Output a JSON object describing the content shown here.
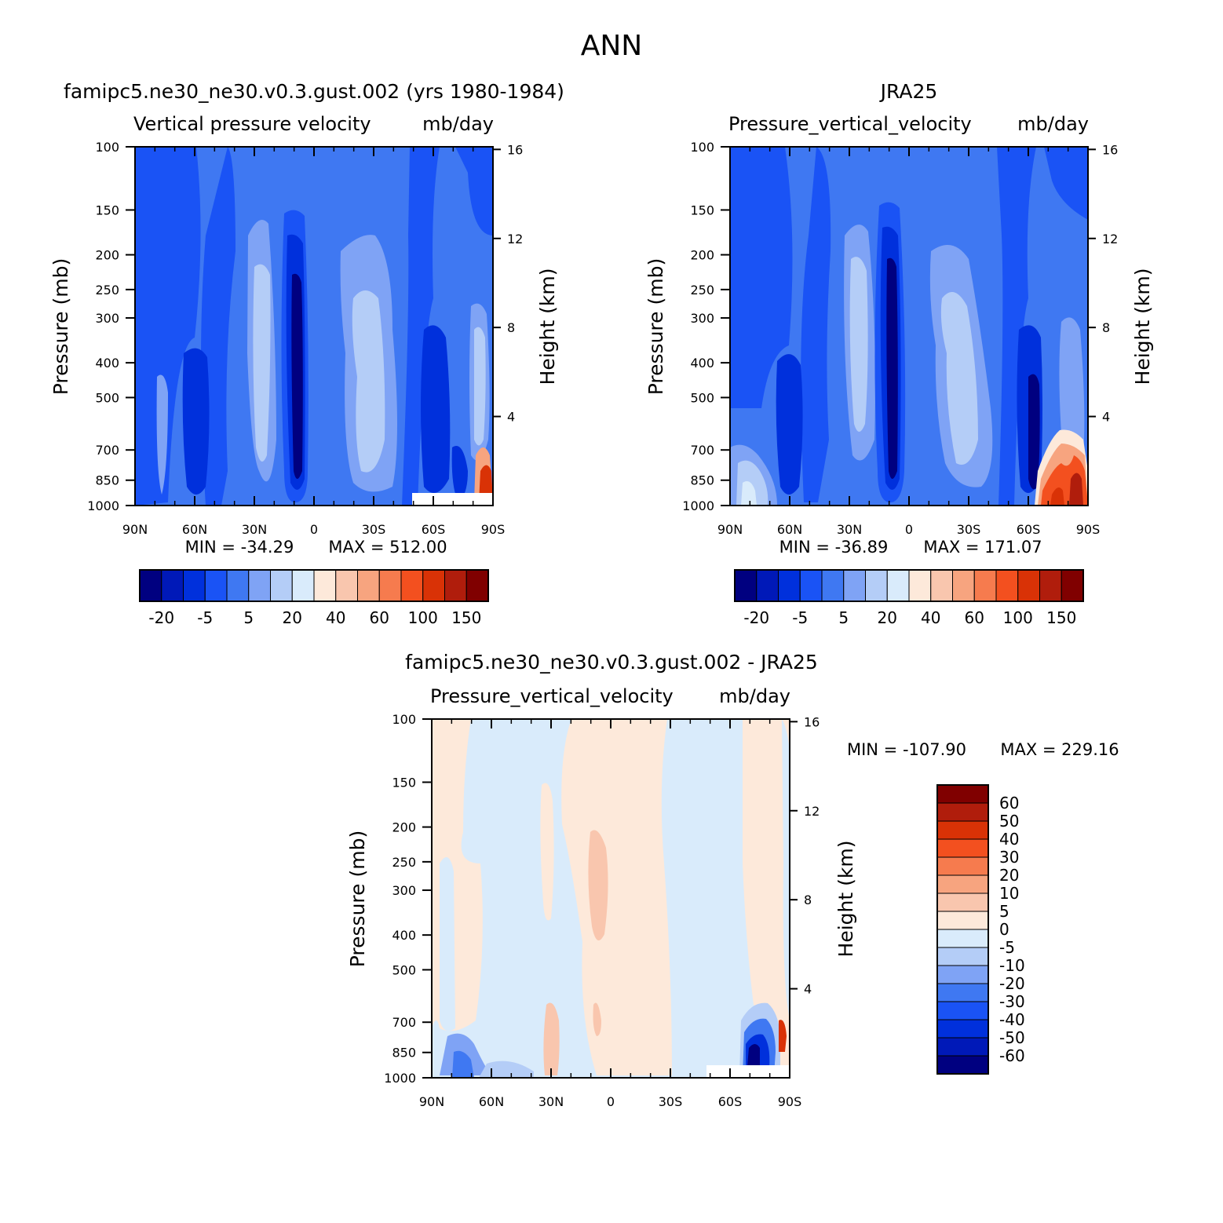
{
  "figure": {
    "title": "ANN"
  },
  "colors": {
    "model_obs_scale": [
      "#000080",
      "#0019b8",
      "#0030dc",
      "#1a53f5",
      "#3f78f2",
      "#7fa3f5",
      "#b4cdf7",
      "#d9ebfb",
      "#fde9da",
      "#f9c6ae",
      "#f7a47f",
      "#f67b4e",
      "#f3501f",
      "#d93206",
      "#b01d0c",
      "#800000"
    ],
    "diff_scale": [
      "#000080",
      "#0019b8",
      "#0030dc",
      "#1a53f5",
      "#3f78f2",
      "#7fa3f5",
      "#b4cdf7",
      "#d9ebfb",
      "#fde9da",
      "#f9c6ae",
      "#f7a47f",
      "#f67b4e",
      "#f3501f",
      "#d93206",
      "#b01d0c",
      "#800000"
    ]
  },
  "chart_data": [
    {
      "type": "heatmap",
      "title": "famipc5.ne30_ne30.v0.3.gust.002 (yrs 1980-1984)",
      "subtitle_left": "Vertical pressure velocity",
      "subtitle_right": "mb/day",
      "ylabel": "Pressure (mb)",
      "ylabel_right": "Height (km)",
      "x_ticks": [
        "90N",
        "60N",
        "30N",
        "0",
        "30S",
        "60S",
        "90S"
      ],
      "y_ticks": [
        "100",
        "150",
        "200",
        "250",
        "300",
        "400",
        "500",
        "700",
        "850",
        "1000"
      ],
      "y_right_ticks": [
        "16",
        "12",
        "8",
        "4"
      ],
      "ylim": [
        1000,
        100
      ],
      "x": [
        90,
        -90
      ],
      "min_text": "MIN = -34.29",
      "max_text": "MAX = 512.00",
      "colorbar_labels": [
        "-20",
        "-5",
        "5",
        "20",
        "40",
        "60",
        "100",
        "150"
      ],
      "colorbar_orientation": "horizontal"
    },
    {
      "type": "heatmap",
      "title": "JRA25",
      "subtitle_left": "Pressure_vertical_velocity",
      "subtitle_right": "mb/day",
      "ylabel": "Pressure (mb)",
      "ylabel_right": "Height (km)",
      "x_ticks": [
        "90N",
        "60N",
        "30N",
        "0",
        "30S",
        "60S",
        "90S"
      ],
      "y_ticks": [
        "100",
        "150",
        "200",
        "250",
        "300",
        "400",
        "500",
        "700",
        "850",
        "1000"
      ],
      "y_right_ticks": [
        "16",
        "12",
        "8",
        "4"
      ],
      "ylim": [
        1000,
        100
      ],
      "x": [
        90,
        -90
      ],
      "min_text": "MIN = -36.89",
      "max_text": "MAX = 171.07",
      "colorbar_labels": [
        "-20",
        "-5",
        "5",
        "20",
        "40",
        "60",
        "100",
        "150"
      ],
      "colorbar_orientation": "horizontal"
    },
    {
      "type": "heatmap",
      "title": "famipc5.ne30_ne30.v0.3.gust.002 - JRA25",
      "subtitle_left": "Pressure_vertical_velocity",
      "subtitle_right": "mb/day",
      "ylabel": "Pressure (mb)",
      "ylabel_right": "Height (km)",
      "x_ticks": [
        "90N",
        "60N",
        "30N",
        "0",
        "30S",
        "60S",
        "90S"
      ],
      "y_ticks": [
        "100",
        "150",
        "200",
        "250",
        "300",
        "400",
        "500",
        "700",
        "850",
        "1000"
      ],
      "y_right_ticks": [
        "16",
        "12",
        "8",
        "4"
      ],
      "ylim": [
        1000,
        100
      ],
      "x": [
        90,
        -90
      ],
      "min_text": "MIN = -107.90",
      "max_text": "MAX = 229.16",
      "colorbar_labels": [
        "60",
        "50",
        "40",
        "30",
        "20",
        "10",
        "5",
        "0",
        "-5",
        "-10",
        "-20",
        "-30",
        "-40",
        "-50",
        "-60"
      ],
      "colorbar_orientation": "vertical"
    }
  ]
}
